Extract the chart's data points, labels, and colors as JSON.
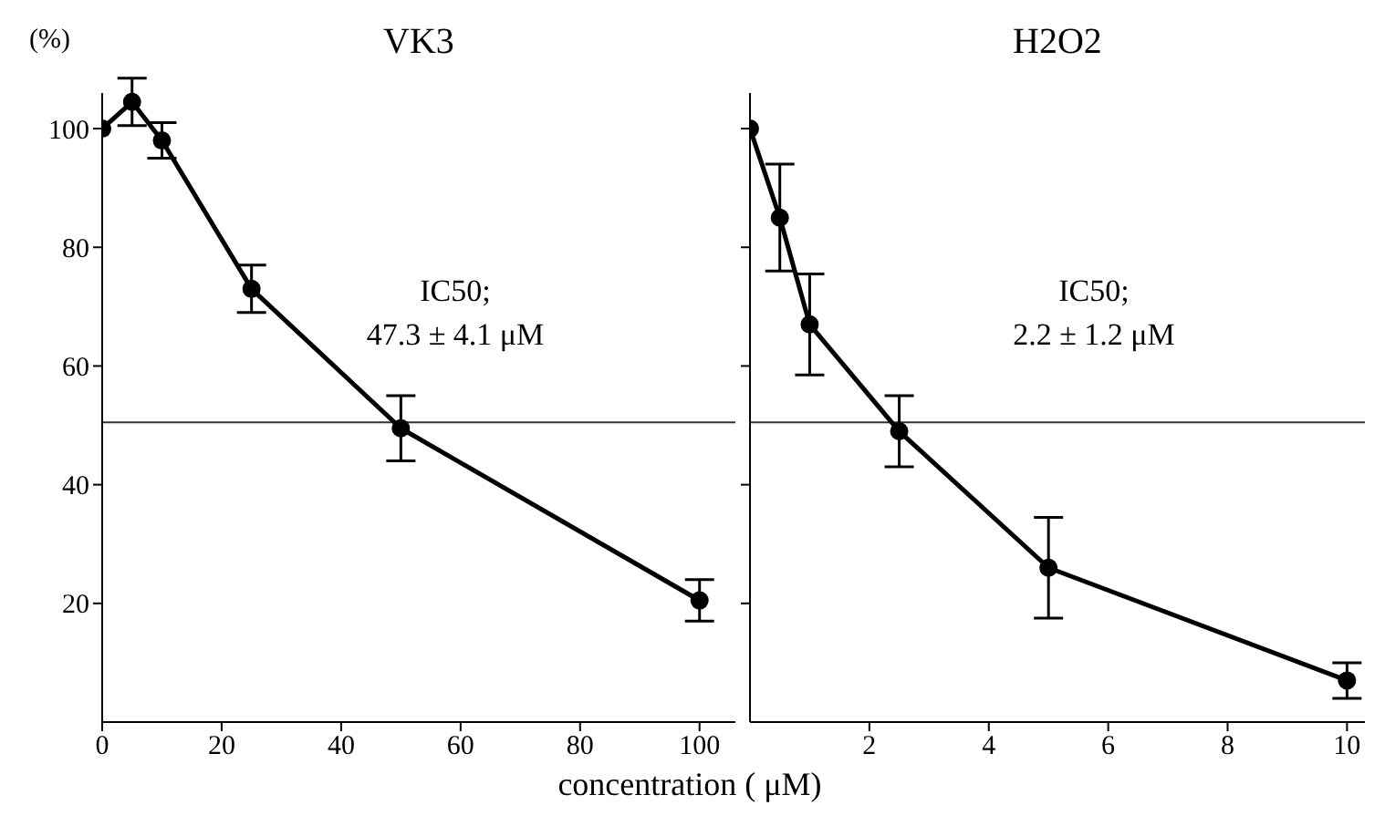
{
  "chart_data": [
    {
      "type": "line",
      "title": "VK3",
      "ylabel": "(%)",
      "xlabel": "concentration ( μM)",
      "x": [
        0,
        5,
        10,
        25,
        50,
        100
      ],
      "series": [
        {
          "color": "#000000",
          "values": [
            100,
            104.5,
            98,
            73,
            49.5,
            20.5
          ],
          "errors": [
            null,
            4,
            3,
            4,
            5.5,
            3.5
          ]
        }
      ],
      "xlim": [
        0,
        106
      ],
      "xticks": [
        0,
        20,
        40,
        60,
        80,
        100
      ],
      "ylim": [
        0,
        106
      ],
      "yticks": [
        20,
        40,
        60,
        80,
        100
      ],
      "ref_lines": [
        {
          "axis": "y",
          "value": 50.5,
          "color": "#333333"
        }
      ],
      "annotations": [
        "IC50;",
        "47.3 ± 4.1 μM"
      ],
      "marker": "circle",
      "line_style": "solid",
      "grid": false
    },
    {
      "type": "line",
      "title": "H2O2",
      "x": [
        0,
        0.5,
        1,
        2.5,
        5,
        10
      ],
      "series": [
        {
          "color": "#000000",
          "values": [
            100,
            85,
            67,
            49,
            26,
            7
          ],
          "errors": [
            null,
            9,
            8.5,
            6,
            8.5,
            3
          ]
        }
      ],
      "xlim": [
        0,
        10.3
      ],
      "xticks": [
        2,
        4,
        6,
        8,
        10
      ],
      "ylim": [
        0,
        106
      ],
      "yticks": [
        20,
        40,
        60,
        80,
        100
      ],
      "tick_labels": "x",
      "ref_lines": [
        {
          "axis": "y",
          "value": 50.5,
          "color": "#333333"
        }
      ],
      "annotations": [
        "IC50;",
        "2.2 ± 1.2 μM"
      ],
      "marker": "circle",
      "line_style": "solid",
      "grid": false
    }
  ]
}
